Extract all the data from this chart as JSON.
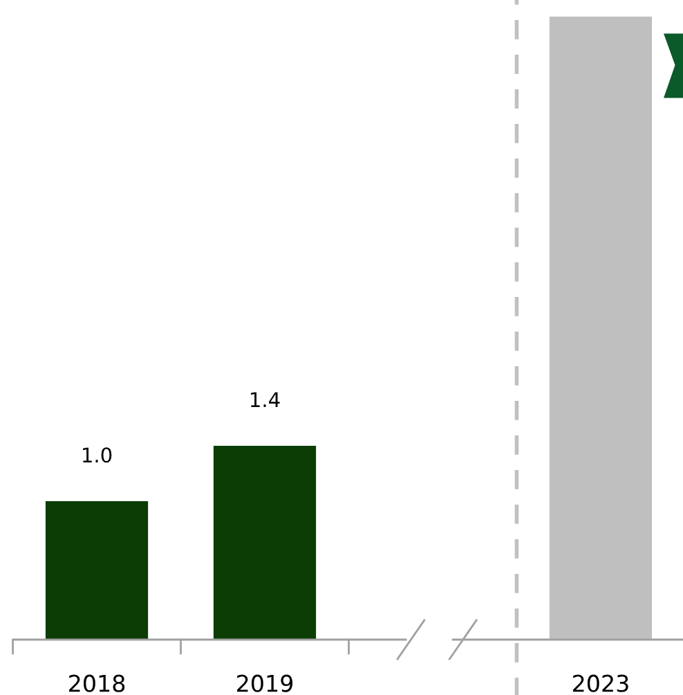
{
  "chart_data": {
    "type": "bar",
    "categories": [
      "2018",
      "2019",
      null,
      "2023"
    ],
    "values": [
      1.0,
      1.4,
      null,
      4.5
    ],
    "colors": [
      "#0b3d05",
      "#0b3d05",
      null,
      "#bfbfbf"
    ],
    "value_labels": [
      "1.0",
      "1.4",
      null,
      null
    ],
    "ylim": [
      0,
      4.62
    ],
    "tick_labels": "x",
    "grid": false,
    "legend": false
  }
}
